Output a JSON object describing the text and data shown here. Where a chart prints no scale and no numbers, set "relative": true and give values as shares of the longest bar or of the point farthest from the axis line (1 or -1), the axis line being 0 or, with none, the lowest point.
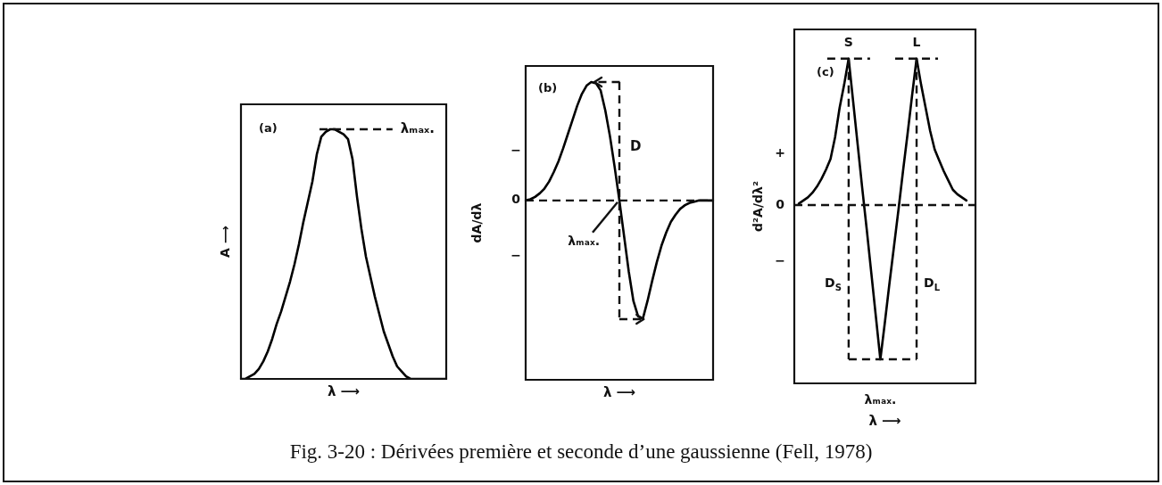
{
  "chart_data": [
    {
      "type": "line",
      "title": "(a)",
      "xlabel": "λ ⟶",
      "ylabel": "A ⟶",
      "categories": [
        null,
        null,
        null,
        null,
        null,
        null,
        null,
        null,
        null,
        null,
        null,
        null,
        null,
        null,
        null,
        null,
        null,
        null,
        null,
        null,
        null,
        null,
        null,
        null,
        null,
        null,
        null,
        null,
        null,
        null,
        null,
        null,
        null,
        null,
        null,
        null,
        null,
        null,
        null,
        null,
        null,
        null,
        null,
        null,
        null,
        null,
        null
      ],
      "values": [
        0,
        0,
        0.01,
        0.02,
        0.04,
        0.07,
        0.11,
        0.16,
        0.22,
        0.27,
        0.33,
        0.39,
        0.46,
        0.54,
        0.63,
        0.71,
        0.79,
        0.9,
        0.97,
        0.99,
        1,
        1,
        0.99,
        0.98,
        0.96,
        0.88,
        0.73,
        0.6,
        0.49,
        0.41,
        0.33,
        0.26,
        0.19,
        0.14,
        0.09,
        0.05,
        0.03,
        0.01,
        0,
        0,
        0,
        0,
        0,
        0,
        0,
        0,
        0
      ],
      "color": "#000000",
      "relative": true,
      "ref_lines": [
        {
          "axis": "y",
          "value": 1,
          "label": "λₘₐₓ.",
          "line_style": "dashed"
        }
      ]
    },
    {
      "type": "line",
      "title": "(b)",
      "xlabel": "λ ⟶",
      "ylabel": "dA/dλ",
      "categories": [
        null,
        null,
        null,
        null,
        null,
        null,
        null,
        null,
        null,
        null,
        null,
        null,
        null,
        null,
        null,
        null,
        null,
        null,
        null,
        null,
        null,
        null,
        null,
        null,
        null,
        null,
        null,
        null,
        null,
        null,
        null,
        null,
        null,
        null,
        null,
        null,
        null,
        null,
        null,
        null,
        null
      ],
      "values": [
        0,
        0.01,
        0.03,
        0.06,
        0.1,
        0.16,
        0.24,
        0.33,
        0.44,
        0.56,
        0.68,
        0.8,
        0.9,
        0.97,
        1,
        0.99,
        0.93,
        0.76,
        0.54,
        0.28,
        0,
        -0.3,
        -0.6,
        -0.85,
        -0.98,
        -1,
        -0.85,
        -0.68,
        -0.52,
        -0.38,
        -0.27,
        -0.18,
        -0.12,
        -0.07,
        -0.04,
        -0.02,
        -0.01,
        0,
        0,
        0,
        0
      ],
      "color": "#000000",
      "relative": true,
      "ref_lines": [
        {
          "axis": "y",
          "value": 0,
          "label": "0",
          "line_style": "dashed"
        }
      ],
      "annotations": [
        "D",
        "λₘₐₓ.",
        "−",
        "−"
      ]
    },
    {
      "type": "line",
      "title": "(c)",
      "xlabel": "λ ⟶",
      "ylabel": "d²A/dλ²",
      "categories": [
        null,
        null,
        null,
        null,
        null,
        null,
        null,
        null,
        null,
        null,
        null,
        null,
        null,
        null,
        null,
        null,
        null,
        null,
        null,
        null,
        null,
        null,
        null,
        null,
        null,
        null,
        null,
        null,
        null,
        null,
        null,
        null,
        null,
        null,
        null,
        null,
        null,
        null,
        null,
        null,
        null
      ],
      "values": [
        null,
        0.01,
        0.03,
        0.05,
        0.08,
        0.12,
        0.17,
        0.23,
        0.3,
        0.44,
        0.63,
        0.78,
        0.95,
        0.67,
        0.39,
        0.11,
        -0.16,
        -0.44,
        -0.72,
        -1,
        -0.76,
        -0.51,
        -0.27,
        -0.03,
        0.22,
        0.46,
        0.71,
        0.95,
        0.78,
        0.63,
        0.48,
        0.36,
        0.29,
        0.22,
        0.16,
        0.1,
        0.07,
        0.05,
        0.03,
        null,
        null
      ],
      "color": "#000000",
      "relative": true,
      "ref_lines": [
        {
          "axis": "y",
          "value": 0,
          "label": "0",
          "line_style": "dashed"
        }
      ],
      "annotations": [
        "S",
        "L",
        "D$_{S}$",
        "D$_{L}$",
        "+",
        "−",
        "λₘₐₓ."
      ]
    },
    {
      "type": "other",
      "annotations": [
        "Fig. 3-20 : Dérivées première et seconde d’une gaussienne (Fell, 1978)"
      ]
    }
  ]
}
